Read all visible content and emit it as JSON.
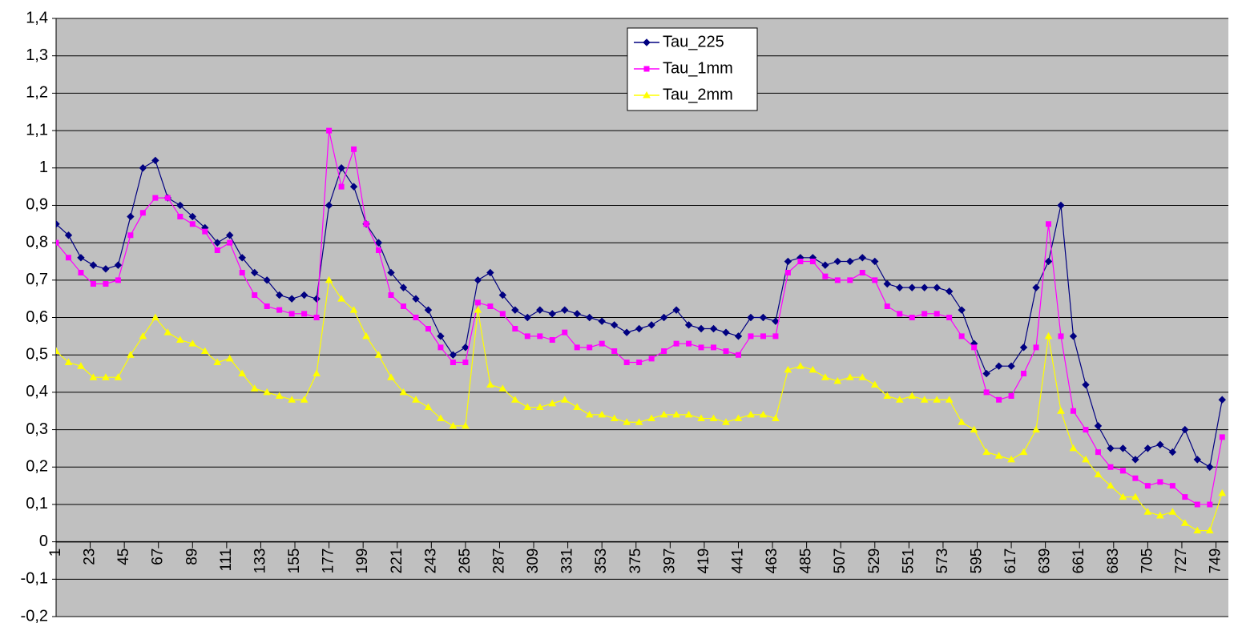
{
  "chart_data": {
    "type": "line",
    "x": [
      1,
      9,
      17,
      25,
      33,
      41,
      49,
      57,
      65,
      73,
      81,
      89,
      97,
      105,
      113,
      121,
      129,
      137,
      145,
      153,
      161,
      169,
      177,
      185,
      193,
      201,
      209,
      217,
      225,
      233,
      241,
      249,
      257,
      265,
      273,
      281,
      289,
      297,
      305,
      313,
      321,
      329,
      337,
      345,
      353,
      361,
      369,
      377,
      385,
      393,
      401,
      409,
      417,
      425,
      433,
      441,
      449,
      457,
      465,
      473,
      481,
      489,
      497,
      505,
      513,
      521,
      529,
      537,
      545,
      553,
      561,
      569,
      577,
      585,
      593,
      601,
      609,
      617,
      625,
      633,
      641,
      649,
      657,
      665,
      673,
      681,
      689,
      697,
      705,
      713,
      721,
      729,
      737,
      745,
      753
    ],
    "series": [
      {
        "name": "Tau_225",
        "color": "#000080",
        "marker": "diamond",
        "values": [
          0.85,
          0.82,
          0.76,
          0.74,
          0.73,
          0.74,
          0.87,
          1.0,
          1.02,
          0.92,
          0.9,
          0.87,
          0.84,
          0.8,
          0.82,
          0.76,
          0.72,
          0.7,
          0.66,
          0.65,
          0.66,
          0.65,
          0.9,
          1.0,
          0.95,
          0.85,
          0.8,
          0.72,
          0.68,
          0.65,
          0.62,
          0.55,
          0.5,
          0.52,
          0.7,
          0.72,
          0.66,
          0.62,
          0.6,
          0.62,
          0.61,
          0.62,
          0.61,
          0.6,
          0.59,
          0.58,
          0.56,
          0.57,
          0.58,
          0.6,
          0.62,
          0.58,
          0.57,
          0.57,
          0.56,
          0.55,
          0.6,
          0.6,
          0.59,
          0.75,
          0.76,
          0.76,
          0.74,
          0.75,
          0.75,
          0.76,
          0.75,
          0.69,
          0.68,
          0.68,
          0.68,
          0.68,
          0.67,
          0.62,
          0.53,
          0.45,
          0.47,
          0.47,
          0.52,
          0.68,
          0.75,
          0.9,
          0.55,
          0.42,
          0.31,
          0.25,
          0.25,
          0.22,
          0.25,
          0.26,
          0.24,
          0.3,
          0.22,
          0.2,
          0.38
        ]
      },
      {
        "name": "Tau_1mm",
        "color": "#ff00ff",
        "marker": "square",
        "values": [
          0.8,
          0.76,
          0.72,
          0.69,
          0.69,
          0.7,
          0.82,
          0.88,
          0.92,
          0.92,
          0.87,
          0.85,
          0.83,
          0.78,
          0.8,
          0.72,
          0.66,
          0.63,
          0.62,
          0.61,
          0.61,
          0.6,
          1.1,
          0.95,
          1.05,
          0.85,
          0.78,
          0.66,
          0.63,
          0.6,
          0.57,
          0.52,
          0.48,
          0.48,
          0.64,
          0.63,
          0.61,
          0.57,
          0.55,
          0.55,
          0.54,
          0.56,
          0.52,
          0.52,
          0.53,
          0.51,
          0.48,
          0.48,
          0.49,
          0.51,
          0.53,
          0.53,
          0.52,
          0.52,
          0.51,
          0.5,
          0.55,
          0.55,
          0.55,
          0.72,
          0.75,
          0.75,
          0.71,
          0.7,
          0.7,
          0.72,
          0.7,
          0.63,
          0.61,
          0.6,
          0.61,
          0.61,
          0.6,
          0.55,
          0.52,
          0.4,
          0.38,
          0.39,
          0.45,
          0.52,
          0.85,
          0.55,
          0.35,
          0.3,
          0.24,
          0.2,
          0.19,
          0.17,
          0.15,
          0.16,
          0.15,
          0.12,
          0.1,
          0.1,
          0.28
        ]
      },
      {
        "name": "Tau_2mm",
        "color": "#ffff00",
        "marker": "triangle",
        "values": [
          0.51,
          0.48,
          0.47,
          0.44,
          0.44,
          0.44,
          0.5,
          0.55,
          0.6,
          0.56,
          0.54,
          0.53,
          0.51,
          0.48,
          0.49,
          0.45,
          0.41,
          0.4,
          0.39,
          0.38,
          0.38,
          0.45,
          0.7,
          0.65,
          0.62,
          0.55,
          0.5,
          0.44,
          0.4,
          0.38,
          0.36,
          0.33,
          0.31,
          0.31,
          0.62,
          0.42,
          0.41,
          0.38,
          0.36,
          0.36,
          0.37,
          0.38,
          0.36,
          0.34,
          0.34,
          0.33,
          0.32,
          0.32,
          0.33,
          0.34,
          0.34,
          0.34,
          0.33,
          0.33,
          0.32,
          0.33,
          0.34,
          0.34,
          0.33,
          0.46,
          0.47,
          0.46,
          0.44,
          0.43,
          0.44,
          0.44,
          0.42,
          0.39,
          0.38,
          0.39,
          0.38,
          0.38,
          0.38,
          0.32,
          0.3,
          0.24,
          0.23,
          0.22,
          0.24,
          0.3,
          0.55,
          0.35,
          0.25,
          0.22,
          0.18,
          0.15,
          0.12,
          0.12,
          0.08,
          0.07,
          0.08,
          0.05,
          0.03,
          0.03,
          0.13
        ]
      }
    ],
    "xlim": [
      1,
      757
    ],
    "xticks": [
      1,
      23,
      45,
      67,
      89,
      111,
      133,
      155,
      177,
      199,
      221,
      243,
      265,
      287,
      309,
      331,
      353,
      375,
      397,
      419,
      441,
      463,
      485,
      507,
      529,
      551,
      573,
      595,
      617,
      639,
      661,
      683,
      705,
      727,
      749
    ],
    "ylim": [
      -0.2,
      1.4
    ],
    "yticks": [
      {
        "value": -0.2,
        "label": "-0,2"
      },
      {
        "value": -0.1,
        "label": "-0,1"
      },
      0,
      {
        "value": 0.1,
        "label": "0,1"
      },
      {
        "value": 0.2,
        "label": "0,2"
      },
      {
        "value": 0.3,
        "label": "0,3"
      },
      {
        "value": 0.4,
        "label": "0,4"
      },
      {
        "value": 0.5,
        "label": "0,5"
      },
      {
        "value": 0.6,
        "label": "0,6"
      },
      {
        "value": 0.7,
        "label": "0,7"
      },
      {
        "value": 0.8,
        "label": "0,8"
      },
      {
        "value": 0.9,
        "label": "0,9"
      },
      1,
      {
        "value": 1.1,
        "label": "1,1"
      },
      {
        "value": 1.2,
        "label": "1,2"
      },
      {
        "value": 1.3,
        "label": "1,3"
      },
      {
        "value": 1.4,
        "label": "1,4"
      }
    ],
    "grid": true,
    "legend": "top",
    "background": "#c0c0c0"
  }
}
